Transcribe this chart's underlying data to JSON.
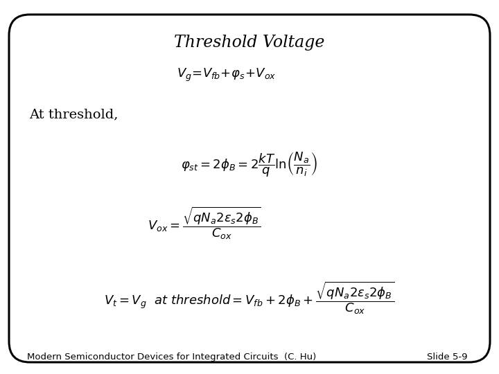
{
  "title": "Threshold Voltage",
  "background_color": "#ffffff",
  "border_color": "#000000",
  "text_color": "#000000",
  "title_fontsize": 17,
  "eq_fontsize": 13,
  "label_fontsize": 14,
  "footer_fontsize": 9.5,
  "label_at_threshold": "At threshold,",
  "footer_left": "Modern Semiconductor Devices for Integrated Circuits  (C. Hu)",
  "footer_right": "Slide 5-9"
}
